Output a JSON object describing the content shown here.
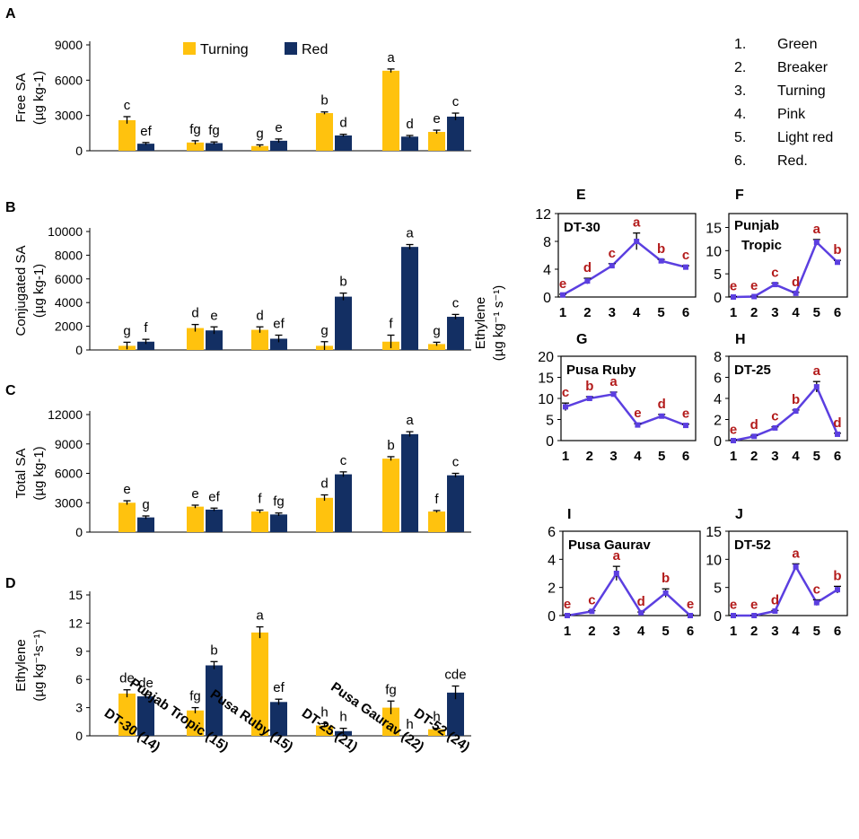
{
  "colors": {
    "turning": "#FFC20E",
    "red": "#132F63",
    "line": "#5B3FE0",
    "letter_right": "#B31B1B",
    "axis": "#000000"
  },
  "stage_legend": [
    {
      "num": "1.",
      "label": "Green"
    },
    {
      "num": "2.",
      "label": "Breaker"
    },
    {
      "num": "3.",
      "label": "Turning"
    },
    {
      "num": "4.",
      "label": "Pink"
    },
    {
      "num": "5.",
      "label": "Light red"
    },
    {
      "num": "6.",
      "label": "Red."
    }
  ],
  "right_ylabel": "Ethylene",
  "right_ylabel_units": "(µg kg⁻¹ s⁻¹)",
  "chart_data": [
    {
      "panel": "A",
      "type": "bar",
      "ylabel": "Free SA",
      "ylabel_units": "(µg kg-1)",
      "ylim": [
        0,
        9000
      ],
      "yticks": [
        "0",
        "3000",
        "6000",
        "9000"
      ],
      "legend": [
        "Turning",
        "Red"
      ],
      "categories": [
        "DT-30 (14)",
        "Punjab Tropic (15)",
        "Pusa Ruby (15)",
        "DT-25 (21)",
        "Pusa Gaurav (22)",
        "DT-52 (24)"
      ],
      "series": [
        {
          "name": "Turning",
          "values": [
            2600,
            700,
            400,
            3200,
            6800,
            1600
          ],
          "errors": [
            300,
            150,
            100,
            100,
            150,
            150
          ],
          "letters": [
            "c",
            "fg",
            "g",
            "b",
            "a",
            "e"
          ]
        },
        {
          "name": "Red",
          "values": [
            600,
            650,
            850,
            1300,
            1200,
            2900
          ],
          "errors": [
            100,
            100,
            150,
            100,
            100,
            300
          ],
          "letters": [
            "ef",
            "fg",
            "e",
            "d",
            "d",
            "c"
          ]
        }
      ]
    },
    {
      "panel": "B",
      "type": "bar",
      "ylabel": "Conjugated SA",
      "ylabel_units": "(µg kg-1)",
      "ylim": [
        0,
        10000
      ],
      "yticks": [
        "0",
        "2000",
        "4000",
        "6000",
        "8000",
        "10000"
      ],
      "categories": [
        "DT-30 (14)",
        "Punjab Tropic (15)",
        "Pusa Ruby (15)",
        "DT-25 (21)",
        "Pusa Gaurav (22)",
        "DT-52 (24)"
      ],
      "series": [
        {
          "name": "Turning",
          "values": [
            350,
            1850,
            1700,
            350,
            700,
            500
          ],
          "errors": [
            300,
            300,
            250,
            350,
            550,
            150
          ],
          "letters": [
            "g",
            "d",
            "d",
            "g",
            "f",
            "g"
          ]
        },
        {
          "name": "Red",
          "values": [
            700,
            1650,
            950,
            4500,
            8700,
            2800
          ],
          "errors": [
            200,
            300,
            300,
            300,
            200,
            200
          ],
          "letters": [
            "f",
            "e",
            "ef",
            "b",
            "a",
            "c"
          ]
        }
      ]
    },
    {
      "panel": "C",
      "type": "bar",
      "ylabel": "Total SA",
      "ylabel_units": "(µg kg-1)",
      "ylim": [
        0,
        12000
      ],
      "yticks": [
        "0",
        "3000",
        "6000",
        "9000",
        "12000"
      ],
      "categories": [
        "DT-30 (14)",
        "Punjab Tropic (15)",
        "Pusa Ruby (15)",
        "DT-25 (21)",
        "Pusa Gaurav (22)",
        "DT-52 (24)"
      ],
      "series": [
        {
          "name": "Turning",
          "values": [
            3000,
            2600,
            2100,
            3500,
            7500,
            2100
          ],
          "errors": [
            200,
            150,
            150,
            300,
            200,
            100
          ],
          "letters": [
            "e",
            "e",
            "f",
            "d",
            "b",
            "f"
          ]
        },
        {
          "name": "Red",
          "values": [
            1500,
            2300,
            1800,
            5900,
            10000,
            5800
          ],
          "errors": [
            150,
            150,
            150,
            250,
            250,
            200
          ],
          "letters": [
            "g",
            "ef",
            "fg",
            "c",
            "a",
            "c"
          ]
        }
      ]
    },
    {
      "panel": "D",
      "type": "bar",
      "ylabel": "Ethylene",
      "ylabel_units": "(µg kg⁻¹s⁻¹)",
      "ylim": [
        0,
        15
      ],
      "yticks": [
        "0",
        "3",
        "6",
        "9",
        "12",
        "15"
      ],
      "categories": [
        "DT-30 (14)",
        "Punjab Tropic (15)",
        "Pusa Ruby (15)",
        "DT-25 (21)",
        "Pusa Gaurav (22)",
        "DT-52 (24)"
      ],
      "series": [
        {
          "name": "Turning",
          "values": [
            4.5,
            2.7,
            11.0,
            1.1,
            3.0,
            0.7
          ],
          "errors": [
            0.4,
            0.3,
            0.6,
            0.2,
            0.7,
            0.1
          ],
          "letters": [
            "de",
            "fg",
            "a",
            "h",
            "fg",
            "h"
          ]
        },
        {
          "name": "Red",
          "values": [
            4.2,
            7.5,
            3.6,
            0.5,
            0.0,
            4.6
          ],
          "errors": [
            0.2,
            0.4,
            0.3,
            0.3,
            0.0,
            0.7
          ],
          "letters": [
            "de",
            "b",
            "ef",
            "h",
            "h",
            "cde"
          ]
        }
      ]
    },
    {
      "panel": "E",
      "type": "line",
      "title": "DT-30",
      "ylim": [
        0,
        12
      ],
      "yticks": [
        "0",
        "4",
        "8",
        "12"
      ],
      "x": [
        "1",
        "2",
        "3",
        "4",
        "5",
        "6"
      ],
      "values": [
        0.3,
        2.3,
        4.5,
        8.0,
        5.2,
        4.3
      ],
      "errors": [
        0.1,
        0.4,
        0.3,
        1.2,
        0.2,
        0.2
      ],
      "letters": [
        "e",
        "d",
        "c",
        "a",
        "b",
        "c"
      ]
    },
    {
      "panel": "F",
      "type": "line",
      "title": "Punjab Tropic",
      "ylim": [
        0,
        18
      ],
      "yticks": [
        "0",
        "5",
        "10",
        "15"
      ],
      "x": [
        "1",
        "2",
        "3",
        "4",
        "5",
        "6"
      ],
      "values": [
        0.0,
        0.1,
        2.7,
        0.8,
        11.8,
        7.5
      ],
      "errors": [
        0.1,
        0.1,
        0.3,
        0.2,
        0.6,
        0.4
      ],
      "letters": [
        "e",
        "e",
        "c",
        "d",
        "a",
        "b"
      ]
    },
    {
      "panel": "G",
      "type": "line",
      "title": "Pusa Ruby",
      "ylim": [
        0,
        20
      ],
      "yticks": [
        "0",
        "5",
        "10",
        "15",
        "20"
      ],
      "x": [
        "1",
        "2",
        "3",
        "4",
        "5",
        "6"
      ],
      "values": [
        8.0,
        10.0,
        11.0,
        3.7,
        5.8,
        3.6
      ],
      "errors": [
        0.9,
        0.4,
        0.5,
        0.3,
        0.4,
        0.3
      ],
      "letters": [
        "c",
        "b",
        "a",
        "e",
        "d",
        "e"
      ]
    },
    {
      "panel": "H",
      "type": "line",
      "title": "DT-25",
      "ylim": [
        0,
        8
      ],
      "yticks": [
        "0",
        "2",
        "4",
        "6",
        "8"
      ],
      "x": [
        "1",
        "2",
        "3",
        "4",
        "5",
        "6"
      ],
      "values": [
        0.0,
        0.4,
        1.2,
        2.8,
        5.1,
        0.6
      ],
      "errors": [
        0.05,
        0.1,
        0.1,
        0.1,
        0.5,
        0.1
      ],
      "letters": [
        "e",
        "d",
        "c",
        "b",
        "a",
        "d"
      ]
    },
    {
      "panel": "I",
      "type": "line",
      "title": "Pusa Gaurav",
      "ylim": [
        0,
        6
      ],
      "yticks": [
        "0",
        "2",
        "4",
        "6"
      ],
      "x": [
        "1",
        "2",
        "3",
        "4",
        "5",
        "6"
      ],
      "values": [
        0.0,
        0.3,
        3.0,
        0.2,
        1.6,
        0.0
      ],
      "errors": [
        0.05,
        0.05,
        0.5,
        0.05,
        0.3,
        0.05
      ],
      "letters": [
        "e",
        "c",
        "a",
        "d",
        "b",
        "e"
      ]
    },
    {
      "panel": "J",
      "type": "line",
      "title": "DT-52",
      "ylim": [
        0,
        15
      ],
      "yticks": [
        "0",
        "5",
        "10",
        "15"
      ],
      "x": [
        "1",
        "2",
        "3",
        "4",
        "5",
        "6"
      ],
      "values": [
        0.0,
        0.0,
        0.8,
        8.7,
        2.3,
        4.6
      ],
      "errors": [
        0.05,
        0.05,
        0.1,
        0.5,
        0.5,
        0.6
      ],
      "letters": [
        "e",
        "e",
        "d",
        "a",
        "c",
        "b"
      ]
    }
  ]
}
